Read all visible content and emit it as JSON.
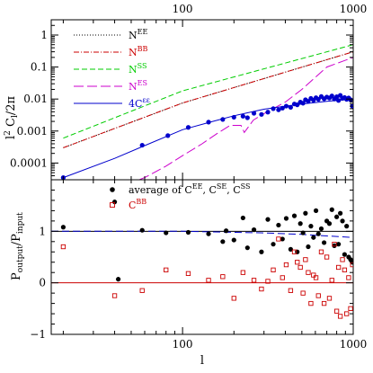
{
  "chart_data": [
    {
      "type": "line",
      "panel": "top",
      "xscale": "log",
      "yscale": "log",
      "xlim": [
        17,
        1000
      ],
      "ylim": [
        3e-05,
        3
      ],
      "top_axis_ticks": [
        "100",
        "1000"
      ],
      "yticks": [
        "0.0001",
        "0.001",
        "0.01",
        "0.1",
        "1"
      ],
      "ylabel_main": "l",
      "ylabel_sup": "2",
      "ylabel_rest": " C",
      "ylabel_sub": "l",
      "ylabel_end": "/2π",
      "legend": [
        {
          "label": "N",
          "sup": "EE",
          "color": "#000000",
          "dash": "1,2"
        },
        {
          "label": "N",
          "sup": "BB",
          "color": "#cc0000",
          "dash": "6,2,1,2"
        },
        {
          "label": "N",
          "sup": "SS",
          "color": "#00cc00",
          "dash": "6,3"
        },
        {
          "label": "N",
          "sup": "ES",
          "color": "#cc00cc",
          "dash": "11,4"
        },
        {
          "label": "4C",
          "sup": "εε",
          "color": "#0000cc",
          "dash": ""
        }
      ],
      "series": [
        {
          "name": "N^EE",
          "color": "#000000",
          "x": [
            20,
            100,
            1000
          ],
          "y": [
            0.0003,
            0.0075,
            0.3
          ]
        },
        {
          "name": "N^BB",
          "color": "#cc0000",
          "x": [
            20,
            100,
            1000
          ],
          "y": [
            0.0003,
            0.0075,
            0.3
          ]
        },
        {
          "name": "N^SS",
          "color": "#00cc00",
          "x": [
            20,
            100,
            1000
          ],
          "y": [
            0.0006,
            0.018,
            0.5
          ]
        },
        {
          "name": "N^ES",
          "color": "#cc00cc",
          "x": [
            40,
            60,
            80,
            100,
            130,
            160,
            190,
            220,
            230,
            260,
            300,
            400,
            500,
            700,
            1000
          ],
          "y": [
            1.5e-05,
            3.5e-05,
            8e-05,
            0.00017,
            0.0004,
            0.00085,
            0.0015,
            0.0015,
            0.0009,
            0.0022,
            0.0035,
            0.008,
            0.02,
            0.1,
            0.2
          ]
        },
        {
          "name": "4C^εε",
          "color": "#0000cc",
          "x": [
            20,
            40,
            60,
            100,
            150,
            200,
            300,
            400,
            500,
            700,
            1000
          ],
          "y": [
            3.5e-05,
            0.00014,
            0.00035,
            0.0011,
            0.002,
            0.003,
            0.0048,
            0.006,
            0.007,
            0.0085,
            0.01
          ]
        }
      ],
      "points": {
        "color": "#0000cc",
        "x": [
          20,
          58,
          82,
          108,
          142,
          172,
          200,
          226,
          240,
          262,
          290,
          316,
          340,
          365,
          385,
          405,
          430,
          452,
          470,
          490,
          508,
          525,
          545,
          565,
          585,
          605,
          625,
          650,
          675,
          700,
          725,
          750,
          775,
          800,
          820,
          840,
          865,
          890,
          915,
          940,
          965,
          990
        ],
        "y": [
          3.5e-05,
          0.00036,
          0.00072,
          0.0013,
          0.0019,
          0.0023,
          0.0027,
          0.0029,
          0.0026,
          0.0036,
          0.0033,
          0.0039,
          0.005,
          0.0046,
          0.0052,
          0.006,
          0.0055,
          0.007,
          0.0066,
          0.008,
          0.0074,
          0.0095,
          0.0085,
          0.0105,
          0.0092,
          0.011,
          0.0098,
          0.012,
          0.0102,
          0.0115,
          0.0108,
          0.0125,
          0.01,
          0.0118,
          0.009,
          0.013,
          0.0105,
          0.0112,
          0.0098,
          0.0108,
          0.0095,
          0.006
        ]
      }
    },
    {
      "type": "scatter",
      "panel": "bottom",
      "xscale": "log",
      "xlim": [
        17,
        1000
      ],
      "ylim": [
        -1,
        2
      ],
      "xticks": [
        "100",
        "1000"
      ],
      "yticks": [
        "−1",
        "0",
        "1"
      ],
      "xlabel": "l",
      "ylabel_a": "P",
      "ylabel_a_sub": "output",
      "ylabel_b": "/P",
      "ylabel_b_sub": "input",
      "legend": [
        {
          "label": "average of C",
          "sup1": "EE",
          "mid1": ", C",
          "sup2": "SE",
          "mid2": ", C",
          "sup3": "SS",
          "color": "#000000",
          "marker": "filled-circle"
        },
        {
          "label": "C",
          "sup1": "BB",
          "color": "#cc0000",
          "marker": "open-square"
        }
      ],
      "reference_lines": [
        {
          "y": 1,
          "color": "#000000",
          "style": "solid"
        },
        {
          "y": 0,
          "color": "#cc0000",
          "style": "solid"
        }
      ],
      "avg_curve": {
        "color": "#0000cc",
        "dash": "8,4",
        "x": [
          17,
          100,
          300,
          500,
          700,
          1000
        ],
        "y": [
          1.0,
          1.0,
          0.97,
          0.94,
          0.91,
          0.88
        ]
      },
      "series": [
        {
          "name": "average of C^EE, C^SE, C^SS",
          "color": "#000000",
          "x": [
            20,
            40,
            42,
            58,
            80,
            108,
            142,
            172,
            180,
            200,
            226,
            240,
            262,
            290,
            316,
            340,
            365,
            385,
            405,
            430,
            452,
            470,
            490,
            508,
            525,
            545,
            565,
            585,
            605,
            625,
            650,
            675,
            700,
            725,
            750,
            775,
            800,
            820,
            840,
            865,
            890,
            915,
            940,
            965,
            990
          ],
          "y": [
            1.08,
            1.57,
            0.07,
            1.02,
            0.97,
            0.98,
            0.95,
            0.8,
            1.01,
            0.83,
            1.26,
            0.68,
            1.03,
            0.6,
            1.23,
            0.75,
            1.12,
            0.85,
            1.25,
            0.65,
            1.3,
            0.6,
            1.15,
            0.97,
            1.35,
            0.7,
            1.1,
            0.88,
            1.4,
            0.95,
            1.05,
            0.78,
            1.2,
            1.15,
            1.42,
            0.72,
            1.28,
            0.75,
            1.35,
            1.2,
            0.55,
            1.1,
            0.5,
            0.45,
            0.4
          ]
        },
        {
          "name": "C^BB",
          "color": "#cc0000",
          "x": [
            20,
            40,
            58,
            80,
            108,
            142,
            172,
            200,
            226,
            262,
            290,
            316,
            340,
            365,
            385,
            405,
            430,
            452,
            470,
            490,
            508,
            525,
            545,
            565,
            585,
            605,
            625,
            650,
            675,
            700,
            725,
            750,
            775,
            800,
            820,
            840,
            865,
            890,
            915,
            940,
            965,
            990
          ],
          "y": [
            0.7,
            -0.25,
            -0.15,
            0.25,
            0.18,
            0.05,
            0.12,
            -0.3,
            0.2,
            0.05,
            -0.12,
            0.03,
            0.25,
            0.85,
            0.1,
            0.35,
            -0.15,
            0.6,
            0.4,
            0.3,
            -0.2,
            0.45,
            0.2,
            -0.4,
            0.15,
            0.1,
            -0.25,
            0.6,
            -0.4,
            0.5,
            -0.3,
            0.05,
            0.75,
            -0.55,
            0.3,
            -0.65,
            0.45,
            0.25,
            -0.6,
            0.1,
            -0.5,
            0.35
          ]
        }
      ]
    }
  ]
}
